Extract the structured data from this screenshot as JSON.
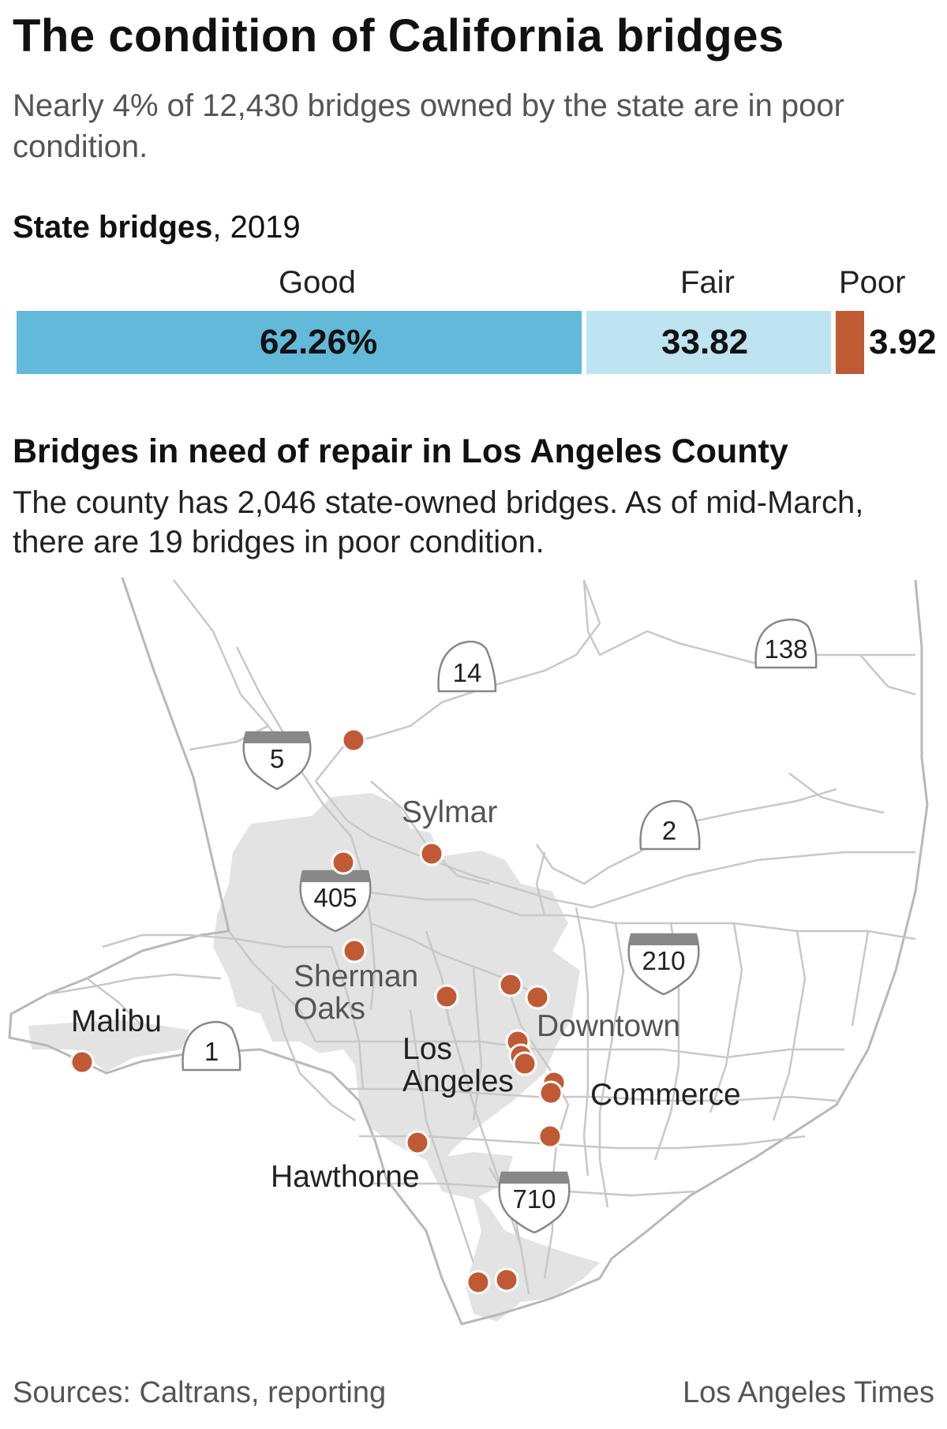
{
  "title": "The condition of California bridges",
  "subtitle": "Nearly 4% of 12,430 bridges owned by the state are in poor condition.",
  "bar_chart": {
    "heading_bold": "State bridges",
    "heading_year": ", 2019",
    "chart_data": {
      "type": "bar",
      "stacked": true,
      "orientation": "horizontal",
      "title": "State bridges, 2019",
      "categories": [
        "Good",
        "Fair",
        "Poor"
      ],
      "values": [
        62.26,
        33.82,
        3.92
      ],
      "value_labels": [
        "62.26%",
        "33.82",
        "3.92"
      ],
      "unit": "%",
      "colors": [
        "#62b9d9",
        "#bee4f1",
        "#bf5a35"
      ]
    }
  },
  "map": {
    "heading": "Bridges in need of repair in Los Angeles County",
    "subtitle": "The county has 2,046 state-owned bridges. As of mid-March, there are 19 bridges in poor condition.",
    "poor_bridge_count_marked": 19,
    "colors": {
      "bridge_dot": "#bf5a35",
      "urban_area": "#e3e3e3",
      "roads": "#c8c8c8",
      "shield": "#888888"
    },
    "cities": {
      "sylmar": "Sylmar",
      "sherman_oaks_1": "Sherman",
      "sherman_oaks_2": "Oaks",
      "malibu": "Malibu",
      "los_angeles_1": "Los",
      "los_angeles_2": "Angeles",
      "downtown": "Downtown",
      "commerce": "Commerce",
      "hawthorne": "Hawthorne"
    },
    "routes": {
      "i5": "5",
      "i405": "405",
      "i210": "210",
      "i710": "710",
      "sr14": "14",
      "sr138": "138",
      "sr2": "2",
      "sr1": "1"
    }
  },
  "footer": {
    "sources": "Sources: Caltrans, reporting",
    "credit": "Los Angeles Times"
  }
}
